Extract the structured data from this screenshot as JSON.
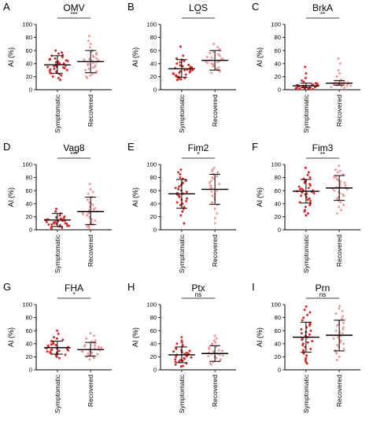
{
  "colors": {
    "symptomatic_dot": "#d42a2a",
    "recovered_dot": "#ee9a9a",
    "axis": "#000000",
    "summary_bar": "#000000"
  },
  "chart_data": [
    {
      "type": "scatter",
      "panel": "A",
      "title": "OMV",
      "ylabel": "AI (%)",
      "ylim": [
        0,
        100
      ],
      "yticks": [
        0,
        20,
        40,
        60,
        80,
        100
      ],
      "categories": [
        "Symptomatic",
        "Recovered"
      ],
      "significance": "***",
      "series": [
        {
          "name": "Symptomatic",
          "mean": 38,
          "sd_low": 25,
          "sd_high": 52,
          "values": [
            60,
            57,
            55,
            53,
            52,
            50,
            48,
            47,
            46,
            45,
            44,
            43,
            42,
            41,
            40,
            40,
            39,
            38,
            38,
            37,
            36,
            35,
            35,
            34,
            33,
            32,
            31,
            30,
            29,
            28,
            27,
            26,
            25,
            24,
            22,
            20,
            18,
            15
          ]
        },
        {
          "name": "Recovered",
          "mean": 43,
          "sd_low": 26,
          "sd_high": 60,
          "values": [
            82,
            75,
            70,
            65,
            60,
            58,
            56,
            54,
            52,
            50,
            48,
            47,
            46,
            45,
            44,
            43,
            42,
            41,
            40,
            39,
            38,
            37,
            35,
            34,
            32,
            30,
            28,
            26,
            24,
            22,
            20,
            18
          ]
        }
      ]
    },
    {
      "type": "scatter",
      "panel": "B",
      "title": "LOS",
      "ylabel": "AI (%)",
      "ylim": [
        0,
        100
      ],
      "yticks": [
        0,
        20,
        40,
        60,
        80,
        100
      ],
      "categories": [
        "Symptomatic",
        "Recovered"
      ],
      "significance": "**",
      "series": [
        {
          "name": "Symptomatic",
          "mean": 32,
          "sd_low": 19,
          "sd_high": 46,
          "values": [
            66,
            52,
            48,
            46,
            44,
            42,
            40,
            38,
            37,
            36,
            35,
            34,
            33,
            32,
            31,
            30,
            30,
            29,
            28,
            27,
            26,
            25,
            24,
            23,
            22,
            21,
            20,
            19,
            18,
            17,
            16,
            15
          ]
        },
        {
          "name": "Recovered",
          "mean": 45,
          "sd_low": 30,
          "sd_high": 60,
          "values": [
            70,
            65,
            62,
            60,
            58,
            56,
            54,
            52,
            50,
            49,
            48,
            47,
            46,
            45,
            44,
            43,
            42,
            41,
            40,
            39,
            38,
            36,
            34,
            32,
            30,
            28,
            26
          ]
        }
      ]
    },
    {
      "type": "scatter",
      "panel": "C",
      "title": "BrkA",
      "ylabel": "AI (%)",
      "ylim": [
        0,
        100
      ],
      "yticks": [
        0,
        20,
        40,
        60,
        80,
        100
      ],
      "categories": [
        "Symptomatic",
        "Recovered"
      ],
      "significance": "**",
      "series": [
        {
          "name": "Symptomatic",
          "mean": 6,
          "sd_low": 3,
          "sd_high": 10,
          "values": [
            35,
            25,
            18,
            14,
            12,
            10,
            9,
            8,
            8,
            7,
            7,
            6,
            6,
            6,
            5,
            5,
            5,
            5,
            4,
            4,
            4,
            3,
            3,
            3,
            2,
            2,
            2,
            1,
            1,
            1
          ]
        },
        {
          "name": "Recovered",
          "mean": 10,
          "sd_low": 7,
          "sd_high": 14,
          "values": [
            48,
            40,
            30,
            25,
            20,
            15,
            13,
            12,
            11,
            11,
            10,
            10,
            10,
            9,
            9,
            9,
            8,
            8,
            8,
            7,
            7,
            6,
            6,
            5,
            4,
            3
          ]
        }
      ]
    },
    {
      "type": "scatter",
      "panel": "D",
      "title": "Vag8",
      "ylabel": "AI (%)",
      "ylim": [
        0,
        100
      ],
      "yticks": [
        0,
        20,
        40,
        60,
        80,
        100
      ],
      "categories": [
        "Symptomatic",
        "Recovered"
      ],
      "significance": "***",
      "series": [
        {
          "name": "Symptomatic",
          "mean": 15,
          "sd_low": 5,
          "sd_high": 25,
          "values": [
            32,
            28,
            25,
            22,
            20,
            19,
            18,
            17,
            16,
            15,
            15,
            14,
            14,
            13,
            12,
            12,
            11,
            10,
            10,
            9,
            9,
            8,
            8,
            7,
            6,
            6,
            5,
            4,
            3,
            2
          ]
        },
        {
          "name": "Recovered",
          "mean": 28,
          "sd_low": 8,
          "sd_high": 50,
          "values": [
            70,
            62,
            58,
            55,
            50,
            46,
            42,
            40,
            38,
            35,
            33,
            31,
            30,
            28,
            27,
            26,
            25,
            24,
            22,
            20,
            18,
            16,
            14,
            12,
            10,
            8,
            6,
            5,
            3
          ]
        }
      ]
    },
    {
      "type": "scatter",
      "panel": "E",
      "title": "Fim2",
      "ylabel": "AI (%)",
      "ylim": [
        0,
        100
      ],
      "yticks": [
        0,
        20,
        40,
        60,
        80,
        100
      ],
      "categories": [
        "Symptomatic",
        "Recovered"
      ],
      "significance": "*",
      "series": [
        {
          "name": "Symptomatic",
          "mean": 55,
          "sd_low": 33,
          "sd_high": 77,
          "values": [
            92,
            88,
            85,
            80,
            78,
            75,
            72,
            70,
            68,
            66,
            64,
            62,
            60,
            58,
            56,
            55,
            54,
            52,
            50,
            48,
            46,
            44,
            42,
            40,
            38,
            35,
            32,
            28,
            22,
            10
          ]
        },
        {
          "name": "Recovered",
          "mean": 62,
          "sd_low": 39,
          "sd_high": 85,
          "values": [
            95,
            92,
            90,
            88,
            85,
            82,
            80,
            78,
            75,
            72,
            70,
            68,
            66,
            64,
            62,
            60,
            58,
            55,
            52,
            50,
            46,
            42,
            38,
            32,
            25,
            18,
            10
          ]
        }
      ]
    },
    {
      "type": "scatter",
      "panel": "F",
      "title": "Fim3",
      "ylabel": "AI (%)",
      "ylim": [
        0,
        100
      ],
      "yticks": [
        0,
        20,
        40,
        60,
        80,
        100
      ],
      "categories": [
        "Symptomatic",
        "Recovered"
      ],
      "significance": "**",
      "series": [
        {
          "name": "Symptomatic",
          "mean": 59,
          "sd_low": 41,
          "sd_high": 77,
          "values": [
            95,
            88,
            84,
            80,
            78,
            76,
            74,
            72,
            70,
            68,
            66,
            64,
            63,
            62,
            61,
            60,
            59,
            58,
            57,
            56,
            55,
            54,
            52,
            50,
            48,
            46,
            44,
            42,
            40,
            38,
            35,
            30,
            28,
            25,
            22
          ]
        },
        {
          "name": "Recovered",
          "mean": 64,
          "sd_low": 45,
          "sd_high": 83,
          "values": [
            98,
            92,
            90,
            88,
            85,
            82,
            80,
            78,
            76,
            74,
            72,
            70,
            68,
            66,
            65,
            64,
            63,
            62,
            60,
            58,
            56,
            54,
            52,
            50,
            48,
            45,
            42,
            38,
            35,
            30,
            25
          ]
        }
      ]
    },
    {
      "type": "scatter",
      "panel": "G",
      "title": "FHA",
      "ylabel": "AI (%)",
      "ylim": [
        0,
        100
      ],
      "yticks": [
        0,
        20,
        40,
        60,
        80,
        100
      ],
      "categories": [
        "Symptomatic",
        "Recovered"
      ],
      "significance": "*",
      "series": [
        {
          "name": "Symptomatic",
          "mean": 34,
          "sd_low": 24,
          "sd_high": 44,
          "values": [
            60,
            55,
            50,
            48,
            46,
            44,
            42,
            40,
            39,
            38,
            37,
            36,
            35,
            34,
            33,
            33,
            32,
            31,
            30,
            30,
            29,
            28,
            27,
            26,
            25,
            24,
            23,
            22,
            20,
            18
          ]
        },
        {
          "name": "Recovered",
          "mean": 31,
          "sd_low": 21,
          "sd_high": 42,
          "values": [
            56,
            52,
            48,
            45,
            43,
            42,
            40,
            38,
            37,
            36,
            35,
            34,
            33,
            32,
            31,
            30,
            30,
            29,
            28,
            27,
            26,
            25,
            24,
            22,
            21,
            20,
            18,
            16
          ]
        }
      ]
    },
    {
      "type": "scatter",
      "panel": "H",
      "title": "Ptx",
      "ylabel": "AI (%)",
      "ylim": [
        0,
        100
      ],
      "yticks": [
        0,
        20,
        40,
        60,
        80,
        100
      ],
      "categories": [
        "Symptomatic",
        "Recovered"
      ],
      "significance": "ns",
      "series": [
        {
          "name": "Symptomatic",
          "mean": 23,
          "sd_low": 11,
          "sd_high": 35,
          "values": [
            50,
            45,
            42,
            40,
            38,
            36,
            34,
            32,
            30,
            29,
            28,
            27,
            26,
            25,
            24,
            23,
            22,
            21,
            20,
            19,
            18,
            17,
            16,
            15,
            14,
            13,
            12,
            10,
            8,
            6,
            5
          ]
        },
        {
          "name": "Recovered",
          "mean": 25,
          "sd_low": 13,
          "sd_high": 37,
          "values": [
            52,
            48,
            45,
            42,
            40,
            38,
            36,
            34,
            32,
            30,
            29,
            28,
            27,
            26,
            25,
            24,
            23,
            22,
            21,
            20,
            18,
            16,
            14,
            12,
            10,
            8
          ]
        }
      ]
    },
    {
      "type": "scatter",
      "panel": "I",
      "title": "Prn",
      "ylabel": "AI (%)",
      "ylim": [
        0,
        100
      ],
      "yticks": [
        0,
        20,
        40,
        60,
        80,
        100
      ],
      "categories": [
        "Symptomatic",
        "Recovered"
      ],
      "significance": "ns",
      "series": [
        {
          "name": "Symptomatic",
          "mean": 50,
          "sd_low": 27,
          "sd_high": 73,
          "values": [
            97,
            92,
            88,
            84,
            80,
            76,
            72,
            70,
            68,
            65,
            62,
            60,
            58,
            56,
            54,
            52,
            50,
            48,
            46,
            44,
            42,
            40,
            38,
            35,
            32,
            30,
            28,
            25,
            22,
            18,
            15,
            12,
            10
          ]
        },
        {
          "name": "Recovered",
          "mean": 53,
          "sd_low": 29,
          "sd_high": 76,
          "values": [
            98,
            94,
            90,
            86,
            82,
            78,
            75,
            72,
            70,
            68,
            65,
            62,
            60,
            58,
            56,
            54,
            52,
            50,
            48,
            46,
            44,
            42,
            40,
            38,
            35,
            32,
            30,
            28,
            25,
            20,
            15
          ]
        }
      ]
    }
  ]
}
